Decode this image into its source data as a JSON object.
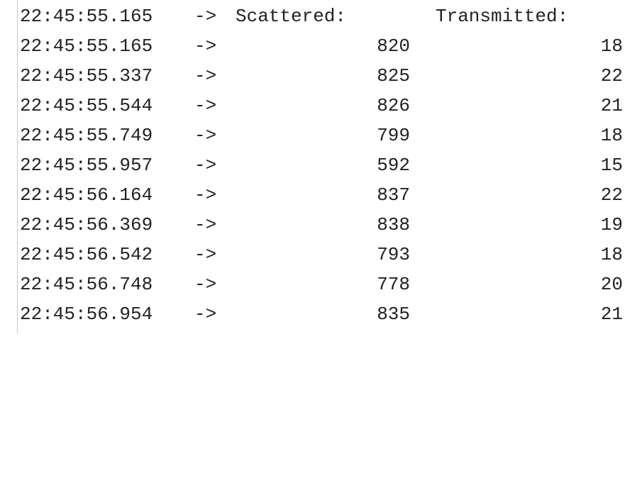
{
  "header": {
    "timestamp": "22:45:55.165",
    "arrow": "->",
    "col_a": "Scattered:",
    "col_b": "Transmitted:"
  },
  "rows": [
    {
      "timestamp": "22:45:55.165",
      "arrow": "->",
      "scattered": "820",
      "transmitted": "18"
    },
    {
      "timestamp": "22:45:55.337",
      "arrow": "->",
      "scattered": "825",
      "transmitted": "22"
    },
    {
      "timestamp": "22:45:55.544",
      "arrow": "->",
      "scattered": "826",
      "transmitted": "21"
    },
    {
      "timestamp": "22:45:55.749",
      "arrow": "->",
      "scattered": "799",
      "transmitted": "18"
    },
    {
      "timestamp": "22:45:55.957",
      "arrow": "->",
      "scattered": "592",
      "transmitted": "15"
    },
    {
      "timestamp": "22:45:56.164",
      "arrow": "->",
      "scattered": "837",
      "transmitted": "22"
    },
    {
      "timestamp": "22:45:56.369",
      "arrow": "->",
      "scattered": "838",
      "transmitted": "19"
    },
    {
      "timestamp": "22:45:56.542",
      "arrow": "->",
      "scattered": "793",
      "transmitted": "18"
    },
    {
      "timestamp": "22:45:56.748",
      "arrow": "->",
      "scattered": "778",
      "transmitted": "20"
    },
    {
      "timestamp": "22:45:56.954",
      "arrow": "->",
      "scattered": "835",
      "transmitted": "21"
    }
  ]
}
